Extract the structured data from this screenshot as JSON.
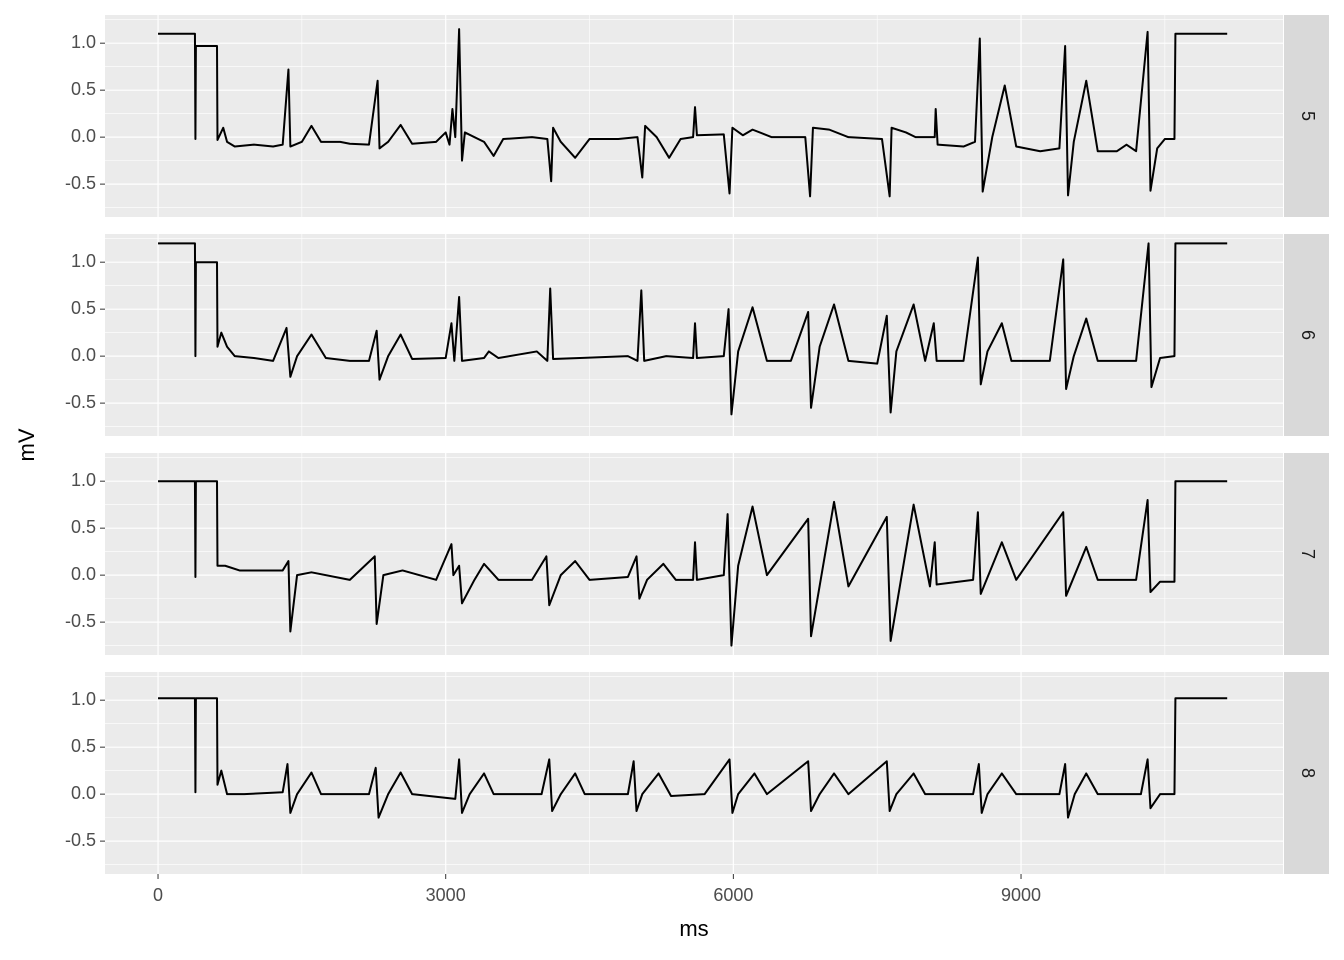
{
  "chart_data": {
    "type": "line",
    "facet": true,
    "xlabel": "ms",
    "ylabel": "mV",
    "xlim": [
      -553,
      11732
    ],
    "xticks": [
      0,
      3000,
      6000,
      9000
    ],
    "ylim": [
      -0.85,
      1.3
    ],
    "yticks": [
      -0.5,
      {
        "value": 0,
        "label": "0.0"
      },
      0.5,
      {
        "value": 1,
        "label": "1.0"
      }
    ],
    "grid": true,
    "series": [
      {
        "name": "5",
        "color": "#000000",
        "x": [
          0,
          385,
          390,
          395,
          615,
          620,
          680,
          720,
          800,
          1000,
          1200,
          1300,
          1360,
          1380,
          1500,
          1600,
          1700,
          1900,
          2000,
          2200,
          2290,
          2310,
          2400,
          2530,
          2650,
          2900,
          3000,
          3040,
          3070,
          3100,
          3140,
          3170,
          3200,
          3400,
          3500,
          3600,
          3900,
          4060,
          4100,
          4120,
          4200,
          4350,
          4500,
          4800,
          5000,
          5050,
          5080,
          5200,
          5330,
          5450,
          5580,
          5600,
          5620,
          5900,
          5960,
          5990,
          6100,
          6200,
          6400,
          6750,
          6800,
          6830,
          7000,
          7200,
          7550,
          7630,
          7650,
          7800,
          7900,
          8100,
          8110,
          8130,
          8400,
          8520,
          8570,
          8600,
          8700,
          8830,
          8950,
          9200,
          9400,
          9460,
          9490,
          9550,
          9680,
          9800,
          10000,
          10100,
          10200,
          10320,
          10350,
          10420,
          10500,
          10600,
          10610,
          11150
        ],
        "values": [
          1.1,
          1.1,
          -0.02,
          0.97,
          0.97,
          -0.03,
          0.1,
          -0.05,
          -0.1,
          -0.08,
          -0.1,
          -0.08,
          0.72,
          -0.1,
          -0.05,
          0.12,
          -0.05,
          -0.05,
          -0.07,
          -0.08,
          0.6,
          -0.12,
          -0.05,
          0.13,
          -0.07,
          -0.05,
          0.05,
          -0.08,
          0.3,
          0.0,
          1.15,
          -0.25,
          0.05,
          -0.05,
          -0.2,
          -0.02,
          0.0,
          -0.02,
          -0.47,
          0.1,
          -0.05,
          -0.22,
          -0.02,
          -0.02,
          0.0,
          -0.43,
          0.12,
          0.0,
          -0.22,
          -0.02,
          0.0,
          0.32,
          0.02,
          0.03,
          -0.6,
          0.1,
          0.02,
          0.08,
          0.0,
          0.0,
          -0.63,
          0.1,
          0.08,
          0.0,
          -0.02,
          -0.63,
          0.1,
          0.05,
          0.0,
          0.0,
          0.3,
          -0.08,
          -0.1,
          -0.05,
          1.05,
          -0.58,
          0.0,
          0.55,
          -0.1,
          -0.15,
          -0.12,
          0.97,
          -0.62,
          -0.05,
          0.6,
          -0.15,
          -0.15,
          -0.08,
          -0.15,
          1.12,
          -0.57,
          -0.12,
          -0.02,
          -0.02,
          1.1,
          1.1
        ]
      },
      {
        "name": "6",
        "color": "#000000",
        "x": [
          0,
          385,
          390,
          395,
          615,
          620,
          660,
          720,
          800,
          1000,
          1200,
          1340,
          1380,
          1450,
          1600,
          1750,
          2000,
          2200,
          2280,
          2310,
          2400,
          2530,
          2650,
          3000,
          3060,
          3090,
          3140,
          3170,
          3400,
          3450,
          3550,
          3950,
          4060,
          4090,
          4120,
          4400,
          4900,
          5000,
          5040,
          5070,
          5300,
          5580,
          5600,
          5620,
          5900,
          5950,
          5980,
          6050,
          6200,
          6350,
          6600,
          6780,
          6810,
          6900,
          7050,
          7200,
          7500,
          7600,
          7640,
          7700,
          7880,
          8000,
          8090,
          8120,
          8400,
          8550,
          8580,
          8650,
          8800,
          8900,
          9300,
          9440,
          9470,
          9550,
          9680,
          9800,
          10200,
          10330,
          10360,
          10450,
          10600,
          10610,
          11150
        ],
        "values": [
          1.2,
          1.2,
          0.0,
          1.0,
          1.0,
          0.1,
          0.25,
          0.1,
          0.0,
          -0.02,
          -0.05,
          0.3,
          -0.22,
          0.0,
          0.23,
          -0.02,
          -0.05,
          -0.05,
          0.27,
          -0.25,
          0.0,
          0.23,
          -0.03,
          -0.02,
          0.35,
          -0.05,
          0.63,
          -0.05,
          -0.02,
          0.05,
          -0.02,
          0.05,
          -0.05,
          0.72,
          -0.03,
          -0.02,
          0.0,
          -0.05,
          0.7,
          -0.05,
          0.0,
          -0.02,
          0.35,
          -0.02,
          0.0,
          0.5,
          -0.62,
          0.05,
          0.52,
          -0.05,
          -0.05,
          0.47,
          -0.55,
          0.1,
          0.55,
          -0.05,
          -0.08,
          0.43,
          -0.6,
          0.05,
          0.55,
          -0.05,
          0.35,
          -0.05,
          -0.05,
          1.05,
          -0.3,
          0.05,
          0.35,
          -0.05,
          -0.05,
          1.03,
          -0.35,
          0.0,
          0.4,
          -0.05,
          -0.05,
          1.2,
          -0.33,
          -0.02,
          0.0,
          1.2,
          1.2
        ]
      },
      {
        "name": "7",
        "color": "#000000",
        "x": [
          0,
          385,
          390,
          395,
          615,
          620,
          700,
          850,
          1300,
          1360,
          1380,
          1450,
          1600,
          2000,
          2260,
          2280,
          2350,
          2550,
          2900,
          3060,
          3080,
          3140,
          3170,
          3300,
          3400,
          3550,
          3900,
          4050,
          4080,
          4200,
          4350,
          4500,
          4900,
          4990,
          5020,
          5100,
          5270,
          5400,
          5580,
          5600,
          5620,
          5900,
          5940,
          5980,
          6050,
          6200,
          6350,
          6780,
          6810,
          7050,
          7200,
          7600,
          7640,
          7880,
          8050,
          8100,
          8120,
          8500,
          8550,
          8580,
          8800,
          8950,
          9440,
          9470,
          9680,
          9800,
          10200,
          10320,
          10350,
          10450,
          10600,
          10610,
          11150
        ],
        "values": [
          1.0,
          1.0,
          -0.02,
          1.0,
          1.0,
          0.1,
          0.1,
          0.05,
          0.05,
          0.15,
          -0.6,
          0.0,
          0.03,
          -0.05,
          0.2,
          -0.52,
          0.0,
          0.05,
          -0.05,
          0.33,
          0.0,
          0.1,
          -0.3,
          -0.05,
          0.12,
          -0.05,
          -0.05,
          0.2,
          -0.32,
          0.0,
          0.15,
          -0.05,
          -0.02,
          0.2,
          -0.25,
          -0.05,
          0.12,
          -0.05,
          -0.05,
          0.35,
          -0.05,
          0.0,
          0.65,
          -0.75,
          0.1,
          0.73,
          0.0,
          0.6,
          -0.65,
          0.78,
          -0.12,
          0.62,
          -0.7,
          0.75,
          -0.12,
          0.35,
          -0.1,
          -0.05,
          0.67,
          -0.2,
          0.35,
          -0.05,
          0.67,
          -0.22,
          0.3,
          -0.05,
          -0.05,
          0.8,
          -0.18,
          -0.07,
          -0.07,
          1.0,
          1.0
        ]
      },
      {
        "name": "8",
        "color": "#000000",
        "x": [
          0,
          385,
          390,
          395,
          615,
          620,
          660,
          720,
          900,
          1300,
          1350,
          1380,
          1450,
          1600,
          1700,
          2200,
          2270,
          2300,
          2400,
          2530,
          2650,
          3100,
          3140,
          3170,
          3250,
          3400,
          3500,
          4000,
          4080,
          4110,
          4200,
          4350,
          4450,
          4900,
          4960,
          4990,
          5050,
          5220,
          5350,
          5700,
          5960,
          5990,
          6050,
          6220,
          6350,
          6780,
          6810,
          6900,
          7050,
          7200,
          7600,
          7630,
          7700,
          7880,
          8000,
          8500,
          8560,
          8590,
          8650,
          8800,
          8950,
          9400,
          9460,
          9490,
          9560,
          9680,
          9800,
          10250,
          10320,
          10350,
          10450,
          10600,
          10610,
          11150
        ],
        "values": [
          1.02,
          1.02,
          0.02,
          1.02,
          1.02,
          0.1,
          0.25,
          0.0,
          0.0,
          0.02,
          0.32,
          -0.2,
          0.0,
          0.23,
          0.0,
          0.0,
          0.28,
          -0.25,
          0.0,
          0.23,
          0.0,
          -0.05,
          0.37,
          -0.2,
          0.0,
          0.22,
          0.0,
          0.0,
          0.37,
          -0.18,
          0.0,
          0.22,
          0.0,
          0.0,
          0.35,
          -0.18,
          0.0,
          0.22,
          -0.02,
          0.0,
          0.37,
          -0.2,
          0.0,
          0.22,
          0.0,
          0.35,
          -0.18,
          0.0,
          0.22,
          0.0,
          0.35,
          -0.18,
          0.0,
          0.22,
          0.0,
          0.0,
          0.32,
          -0.2,
          0.0,
          0.22,
          0.0,
          0.0,
          0.32,
          -0.25,
          0.0,
          0.22,
          0.0,
          0.0,
          0.37,
          -0.15,
          0.0,
          0.0,
          1.02,
          1.02
        ]
      }
    ]
  }
}
